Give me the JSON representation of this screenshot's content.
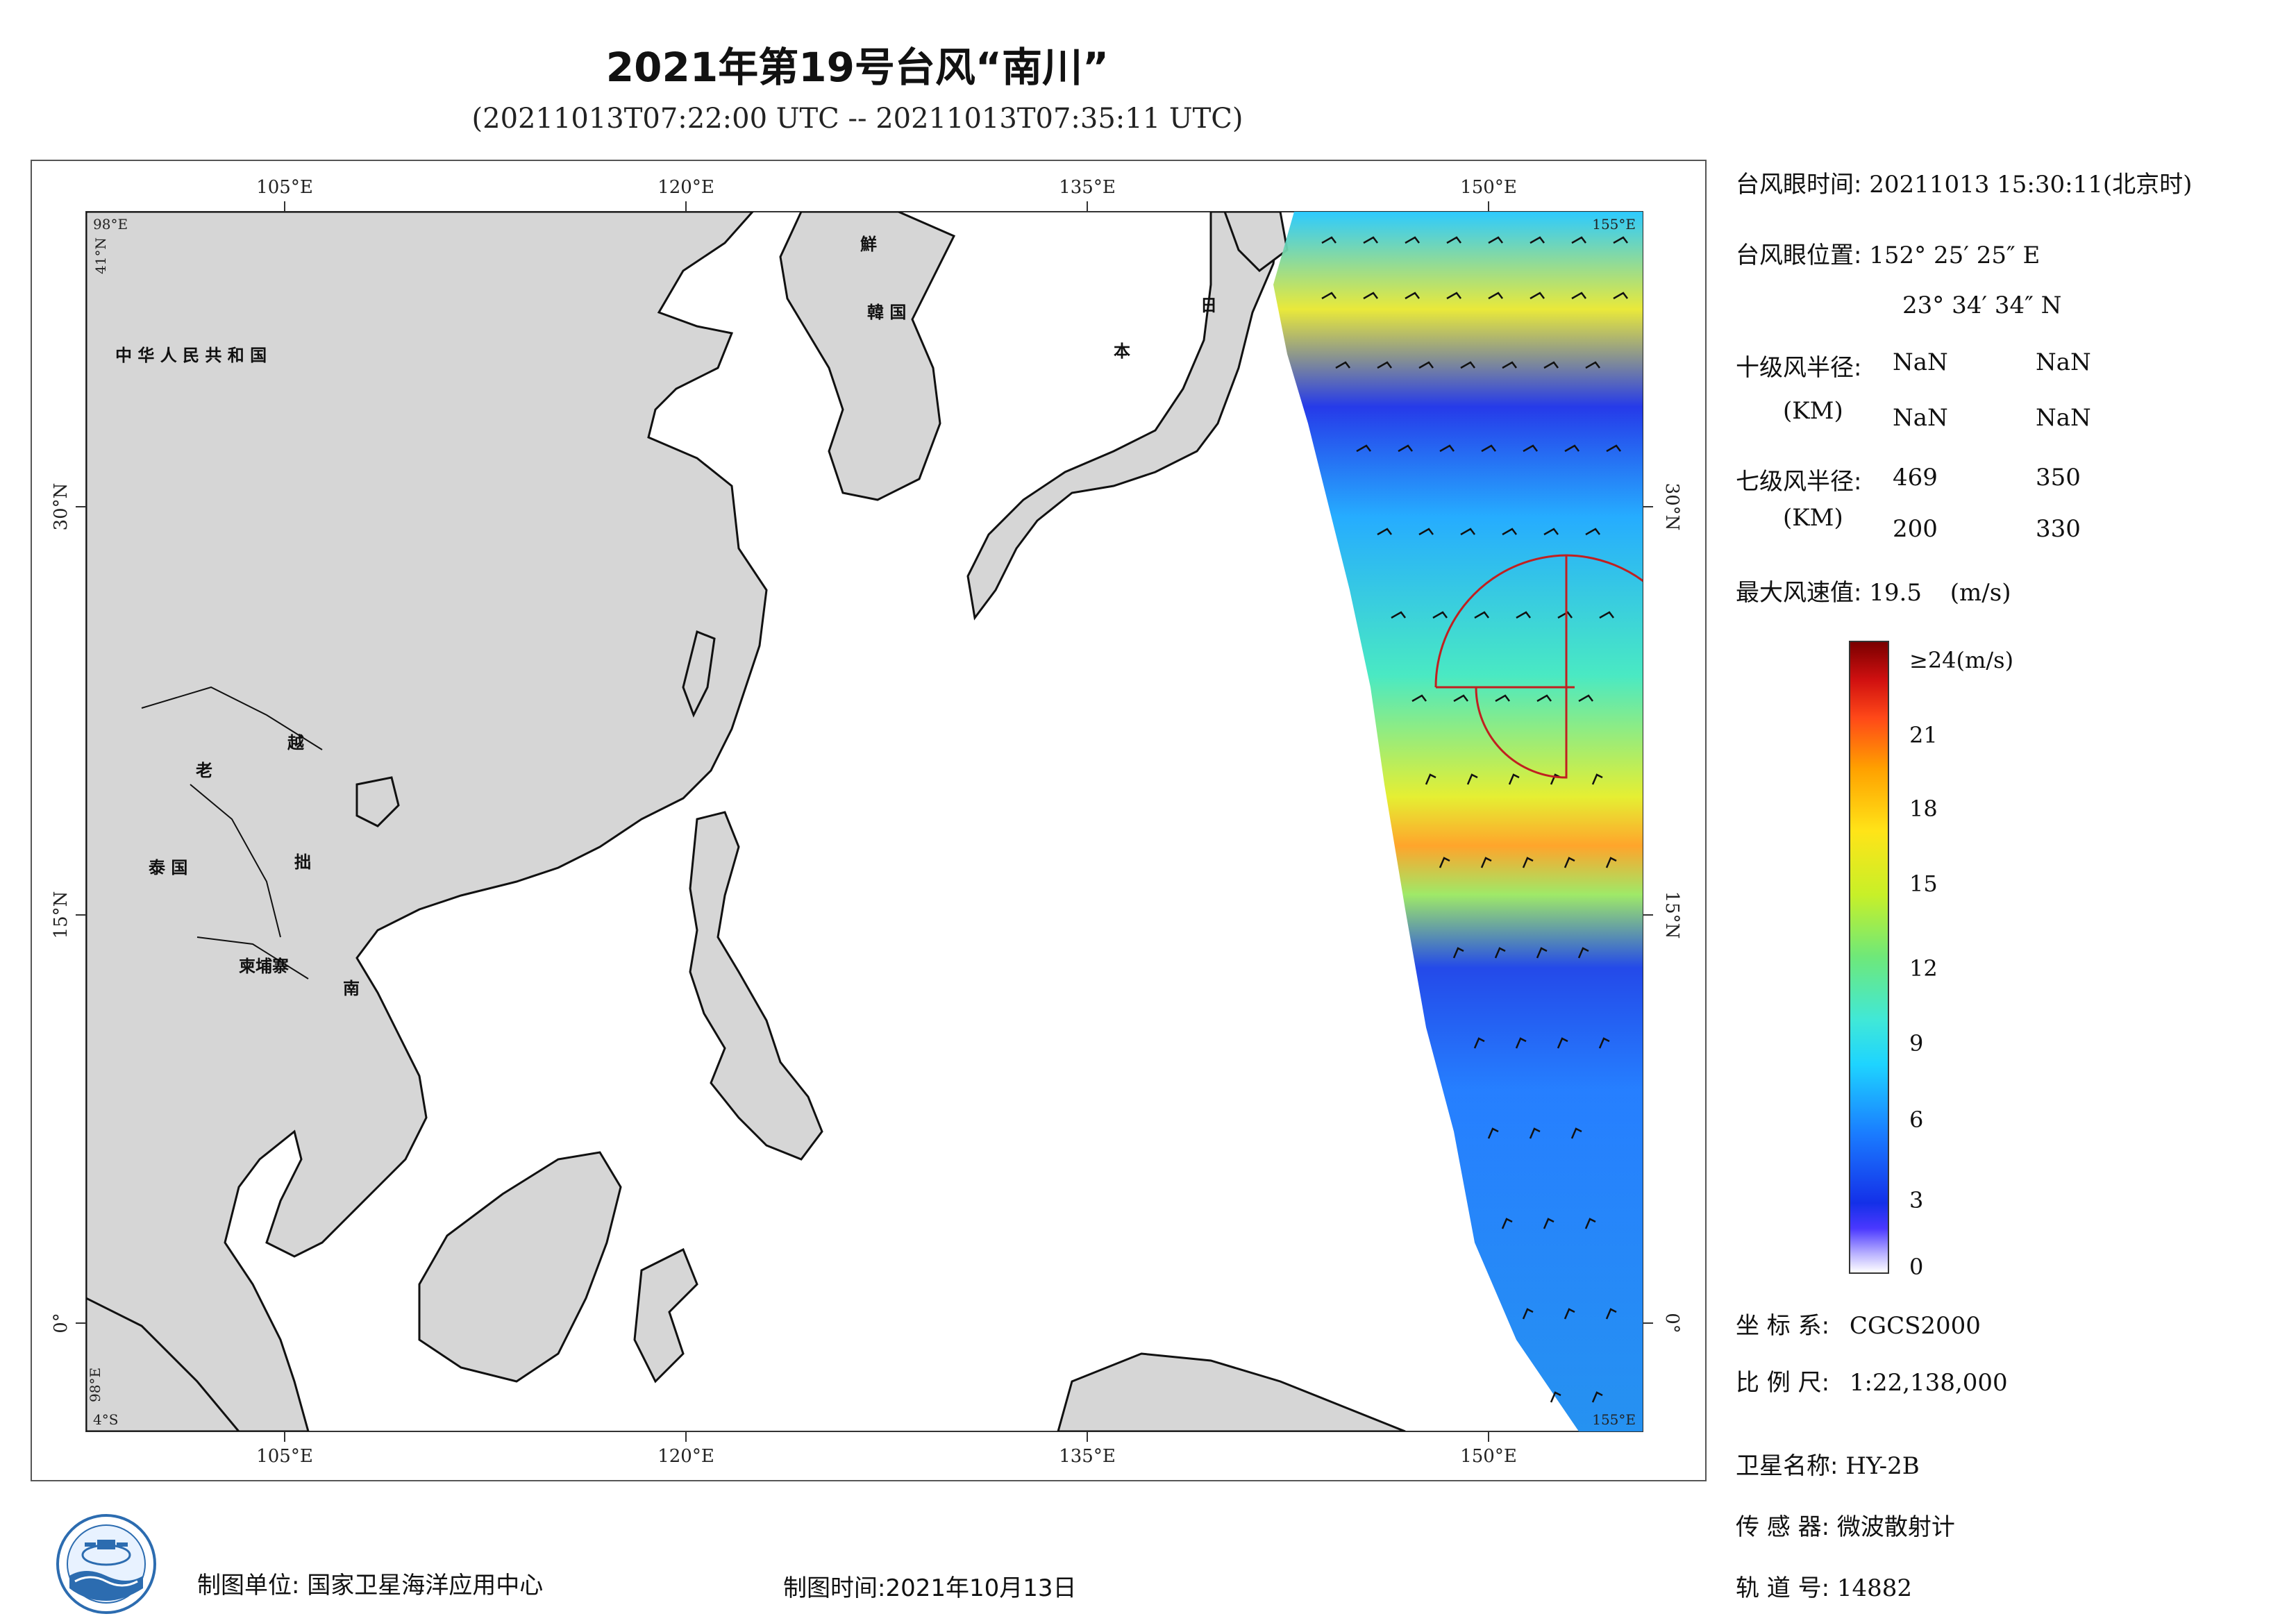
{
  "title": "2021年第19号台风“南川”",
  "subtitle": "(20211013T07:22:00 UTC -- 20211013T07:35:11 UTC)",
  "map": {
    "lon_ticks": [
      "105°E",
      "120°E",
      "135°E",
      "150°E"
    ],
    "lat_ticks": [
      "30°N",
      "15°N",
      "0°"
    ],
    "corner_labels": [
      "98°E",
      "41°N",
      "155°E",
      "4°S",
      "98°E",
      "155°E"
    ],
    "country_labels": {
      "china": "中 华 人 民 共 和 国",
      "korea_north": "鮮",
      "korea_south": "韓 国",
      "japan_1": "日",
      "japan_2": "本",
      "laos": "老",
      "vietnam_1": "越",
      "vietnam_2": "拙",
      "vietnam_3": "南",
      "thailand": "泰 国",
      "cambodia": "柬埔寨"
    },
    "swath_colors": [
      "#1aa0ff",
      "#22d0ff",
      "#7ae86a",
      "#f0ea20",
      "#1a4cf0"
    ]
  },
  "info": {
    "eye_time_label": "台风眼时间:",
    "eye_time_value": "20211013 15:30:11(北京时)",
    "eye_pos_label": "台风眼位置:",
    "eye_lon": "152° 25′ 25″ E",
    "eye_lat": "23° 34′ 34″ N",
    "r10_label": "十级风半径:",
    "r_unit": "(KM)",
    "r10_values": [
      "NaN",
      "NaN",
      "NaN",
      "NaN"
    ],
    "r7_label": "七级风半径:",
    "r7_values": [
      "469",
      "350",
      "200",
      "330"
    ],
    "max_wind_label": "最大风速值:",
    "max_wind_value": "19.5",
    "max_wind_unit": "(m/s)"
  },
  "colorbar": {
    "top_label": "≥24(m/s)",
    "ticks": [
      "21",
      "18",
      "15",
      "12",
      "9",
      "6",
      "3",
      "0"
    ]
  },
  "meta": {
    "crs_label": "坐 标 系:",
    "crs_value": "CGCS2000",
    "scale_label": "比 例 尺:",
    "scale_value": "1:22,138,000",
    "satellite_label": "卫星名称:",
    "satellite_value": "HY-2B",
    "sensor_label": "传 感 器:",
    "sensor_value": "微波散射计",
    "orbit_label": "轨 道 号:",
    "orbit_value": "14882"
  },
  "footer": {
    "producer": "制图单位: 国家卫星海洋应用中心",
    "date": "制图时间:2021年10月13日"
  }
}
